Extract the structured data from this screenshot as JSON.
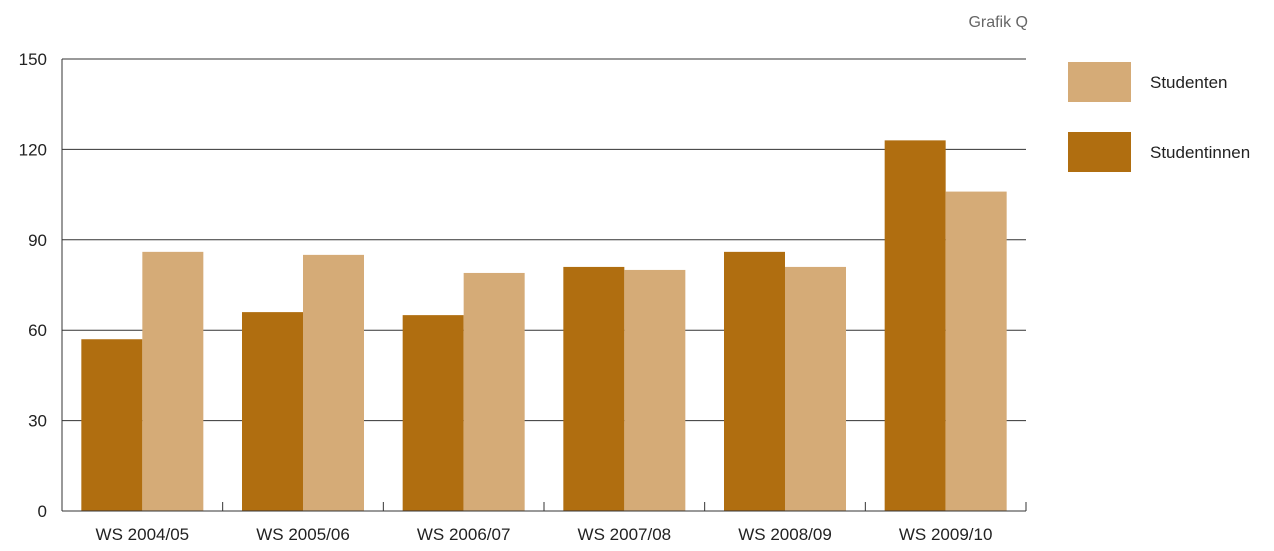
{
  "grafik_label": "Grafik Q",
  "colors": {
    "studentinnen": "#b06e10",
    "studenten": "#d5ab77",
    "grid": "#333333"
  },
  "chart_data": {
    "type": "bar",
    "categories": [
      "WS 2004/05",
      "WS 2005/06",
      "WS 2006/07",
      "WS 2007/08",
      "WS 2008/09",
      "WS 2009/10"
    ],
    "series": [
      {
        "name": "Studentinnen",
        "values": [
          57,
          66,
          65,
          81,
          86,
          123
        ]
      },
      {
        "name": "Studenten",
        "values": [
          86,
          85,
          79,
          80,
          81,
          106
        ]
      }
    ],
    "ylim": [
      0,
      150
    ],
    "yticks": [
      0,
      30,
      60,
      90,
      120,
      150
    ],
    "grid": true,
    "legend": {
      "placement": "right",
      "entries": [
        "Studenten",
        "Studentinnen"
      ]
    }
  }
}
